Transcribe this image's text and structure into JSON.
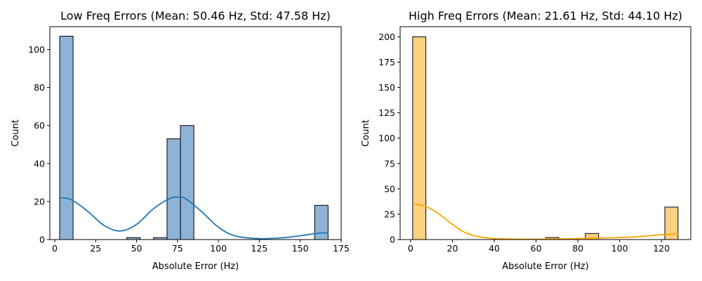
{
  "chart_data": [
    {
      "type": "bar",
      "title": "Low Freq Errors (Mean: 50.46 Hz, Std: 47.58 Hz)",
      "xlabel": "Absolute Error (Hz)",
      "ylabel": "Count",
      "xlim": [
        -3,
        175
      ],
      "ylim": [
        0,
        112
      ],
      "xticks": [
        0,
        25,
        50,
        75,
        100,
        125,
        150,
        175
      ],
      "yticks": [
        0,
        20,
        40,
        60,
        80,
        100
      ],
      "bar_color": "#8db3d6",
      "kde_color": "#1f77b4",
      "bins": [
        {
          "x0": 3.0,
          "x1": 11.2,
          "count": 107
        },
        {
          "x0": 44.0,
          "x1": 52.2,
          "count": 1
        },
        {
          "x0": 60.4,
          "x1": 68.6,
          "count": 1
        },
        {
          "x0": 68.6,
          "x1": 76.8,
          "count": 53
        },
        {
          "x0": 76.8,
          "x1": 85.0,
          "count": 60
        },
        {
          "x0": 158.8,
          "x1": 167.0,
          "count": 18
        }
      ],
      "kde": {
        "x": [
          3,
          10,
          20,
          30,
          40,
          50,
          60,
          70,
          75,
          80,
          90,
          100,
          110,
          125,
          140,
          150,
          160,
          167
        ],
        "y": [
          22,
          21,
          15,
          7.5,
          4.5,
          8,
          16,
          21.5,
          22.3,
          21.5,
          14.5,
          6.5,
          2,
          0.5,
          1,
          2,
          3.2,
          3.6
        ]
      }
    },
    {
      "type": "bar",
      "title": "High Freq Errors (Mean: 21.61 Hz, Std: 44.10 Hz)",
      "xlabel": "Absolute Error (Hz)",
      "ylabel": "Count",
      "xlim": [
        -5,
        134
      ],
      "ylim": [
        0,
        210
      ],
      "xticks": [
        0,
        20,
        40,
        60,
        80,
        100,
        120
      ],
      "yticks": [
        0,
        25,
        50,
        75,
        100,
        125,
        150,
        175,
        200
      ],
      "bar_color": "#ffd080",
      "kde_color": "#ffa500",
      "bins": [
        {
          "x0": 1.0,
          "x1": 7.3,
          "count": 200
        },
        {
          "x0": 64.6,
          "x1": 70.9,
          "count": 2
        },
        {
          "x0": 83.6,
          "x1": 89.9,
          "count": 6
        },
        {
          "x0": 121.6,
          "x1": 127.9,
          "count": 32
        }
      ],
      "kde": {
        "x": [
          1,
          5,
          10,
          15,
          20,
          25,
          30,
          35,
          40,
          50,
          60,
          70,
          80,
          90,
          100,
          110,
          120,
          128
        ],
        "y": [
          35,
          34,
          30,
          23,
          15,
          8,
          4,
          2,
          1,
          0.4,
          0.3,
          0.5,
          1,
          1.5,
          2,
          3,
          4.8,
          5.5
        ]
      }
    }
  ]
}
